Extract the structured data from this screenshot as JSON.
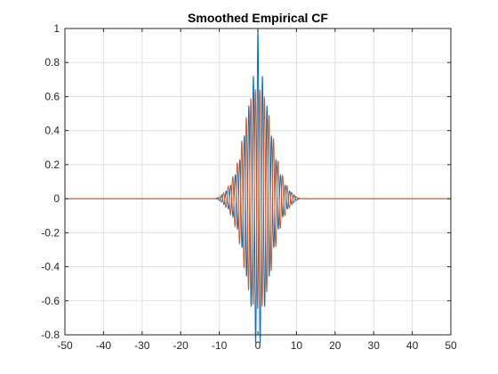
{
  "chart_data": {
    "type": "line",
    "title": "Smoothed Empirical CF",
    "xlabel": "",
    "ylabel": "",
    "xlim": [
      -50,
      50
    ],
    "ylim": [
      -0.8,
      1
    ],
    "x_ticks": [
      -50,
      -40,
      -30,
      -20,
      -10,
      0,
      10,
      20,
      30,
      40,
      50
    ],
    "y_ticks": [
      -0.8,
      -0.6,
      -0.4,
      -0.2,
      0,
      0.2,
      0.4,
      0.6,
      0.8,
      1
    ],
    "x_tick_labels": [
      "-50",
      "-40",
      "-30",
      "-20",
      "-10",
      "0",
      "10",
      "20",
      "30",
      "40",
      "50"
    ],
    "y_tick_labels": [
      "-0.8",
      "-0.6",
      "-0.4",
      "-0.2",
      "0",
      "0.2",
      "0.4",
      "0.6",
      "0.8",
      "1"
    ],
    "grid": true,
    "series": [
      {
        "color": "#0072BD",
        "x": [
          -50,
          -11,
          -10,
          -9,
          -8,
          -7,
          -6,
          -5,
          -4,
          -3,
          -2,
          -1,
          0,
          1,
          2,
          3,
          4,
          5,
          6,
          7,
          8,
          9,
          10,
          11,
          50
        ],
        "envelope": [
          0,
          0,
          0.01,
          0.03,
          0.05,
          0.08,
          0.13,
          0.2,
          0.3,
          0.45,
          0.6,
          0.75,
          1.0,
          0.75,
          0.6,
          0.45,
          0.3,
          0.2,
          0.13,
          0.08,
          0.05,
          0.03,
          0.01,
          0,
          0
        ]
      },
      {
        "color": "#D95319",
        "x": [
          -50,
          -11,
          -10,
          -9,
          -8,
          -7,
          -6,
          -5,
          -4,
          -3,
          -2,
          -1,
          0,
          1,
          2,
          3,
          4,
          5,
          6,
          7,
          8,
          9,
          10,
          11,
          50
        ],
        "envelope": [
          0,
          0,
          0.01,
          0.03,
          0.06,
          0.1,
          0.16,
          0.24,
          0.36,
          0.48,
          0.58,
          0.64,
          0.65,
          0.64,
          0.58,
          0.48,
          0.36,
          0.24,
          0.16,
          0.1,
          0.06,
          0.03,
          0.01,
          0,
          0
        ]
      }
    ]
  }
}
